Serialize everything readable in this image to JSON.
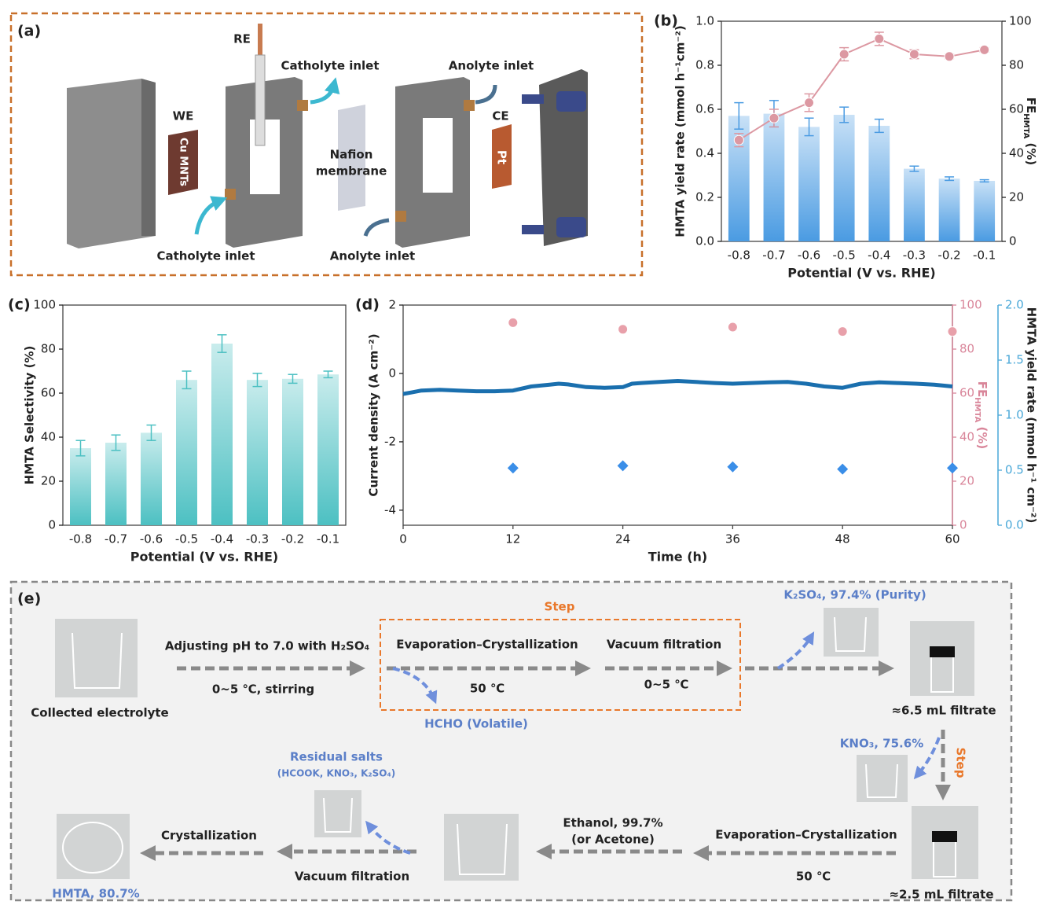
{
  "chart_data": [
    {
      "type": "bar",
      "panel": "(b)",
      "xlabel": "Potential (V vs. RHE)",
      "ylabel": "HMTA yield rate (mmol h⁻¹cm⁻²)",
      "y2label": [
        "FE",
        "HMTA",
        " (%)"
      ],
      "categories": [
        "-0.8",
        "-0.7",
        "-0.6",
        "-0.5",
        "-0.4",
        "-0.3",
        "-0.2",
        "-0.1"
      ],
      "ylim": [
        0,
        1
      ],
      "yticks": [
        {
          "value": 0,
          "label": "0.0"
        },
        0.2,
        0.4,
        0.6,
        0.8,
        {
          "value": 1,
          "label": "1.0"
        }
      ],
      "y2lim": [
        0,
        100
      ],
      "y2ticks": [
        0,
        20,
        40,
        60,
        80,
        100
      ],
      "series": [
        {
          "type": "bar",
          "color": "#4a9be2",
          "values": [
            0.57,
            0.58,
            0.52,
            0.575,
            0.525,
            0.33,
            0.285,
            0.275
          ],
          "errors": [
            0.06,
            0.06,
            0.04,
            0.035,
            0.03,
            0.012,
            0.008,
            0.005
          ]
        },
        {
          "type": "line",
          "axis": "y2",
          "color": "#dc98a2",
          "marker": "circle",
          "values": [
            46,
            56,
            63,
            85,
            92,
            85,
            84,
            87
          ],
          "errors": [
            3,
            4,
            4,
            3,
            3,
            2,
            1,
            1
          ]
        }
      ]
    },
    {
      "type": "bar",
      "panel": "(c)",
      "xlabel": "Potential (V vs. RHE)",
      "ylabel": "HMTA Selectivity (%)",
      "categories": [
        "-0.8",
        "-0.7",
        "-0.6",
        "-0.5",
        "-0.4",
        "-0.3",
        "-0.2",
        "-0.1"
      ],
      "ylim": [
        0,
        100
      ],
      "yticks": [
        0,
        20,
        40,
        60,
        80,
        100
      ],
      "series": [
        {
          "type": "bar",
          "color": "#4cc0c2",
          "values": [
            35,
            37.5,
            42,
            66,
            82.5,
            66,
            66.5,
            68.5
          ],
          "errors": [
            3.5,
            3.5,
            3.5,
            4,
            4,
            3,
            2,
            1.5
          ]
        }
      ]
    },
    {
      "type": "line",
      "panel": "(d)",
      "xlabel": "Time (h)",
      "ylabel": "Current density (A cm⁻²)",
      "y2label": [
        "FE",
        "HMTA",
        " (%)"
      ],
      "y3label": "HMTA yield rate (mmol h⁻¹ cm⁻²)",
      "xlim": [
        0,
        60
      ],
      "xticks": [
        0,
        12,
        24,
        36,
        48,
        60
      ],
      "ylim": [
        -4.44,
        2
      ],
      "yticks": [
        2,
        0,
        -2,
        -4
      ],
      "y2lim": [
        0,
        100
      ],
      "y2ticks": [
        0,
        20,
        40,
        60,
        80,
        100
      ],
      "y2color": "#d9869a",
      "y3lim": [
        0,
        2
      ],
      "y3ticks": [
        {
          "value": 0,
          "label": "0.0"
        },
        0.5,
        {
          "value": 1,
          "label": "1.0"
        },
        1.5,
        {
          "value": 2,
          "label": "2.0"
        }
      ],
      "y3color": "#4aa8d8",
      "series": [
        {
          "type": "line",
          "color": "#1a6fae",
          "x": [
            0,
            1,
            2,
            4,
            6,
            8,
            10,
            12,
            14,
            16,
            17,
            18,
            20,
            22,
            24,
            25,
            26,
            28,
            30,
            32,
            34,
            36,
            38,
            40,
            42,
            44,
            46,
            48,
            49,
            50,
            52,
            54,
            56,
            58,
            60
          ],
          "values": [
            -0.6,
            -0.55,
            -0.5,
            -0.48,
            -0.5,
            -0.52,
            -0.52,
            -0.5,
            -0.38,
            -0.33,
            -0.3,
            -0.32,
            -0.4,
            -0.42,
            -0.4,
            -0.3,
            -0.28,
            -0.25,
            -0.22,
            -0.25,
            -0.28,
            -0.3,
            -0.28,
            -0.26,
            -0.25,
            -0.3,
            -0.38,
            -0.42,
            -0.36,
            -0.3,
            -0.26,
            -0.28,
            -0.3,
            -0.33,
            -0.38
          ]
        },
        {
          "type": "scatter",
          "axis": "y2",
          "color": "#e8a0aa",
          "marker": "circle",
          "x": [
            12,
            24,
            36,
            48,
            60
          ],
          "values": [
            92,
            89,
            90,
            88,
            88
          ]
        },
        {
          "type": "scatter",
          "axis": "y3",
          "color": "#3a8ee8",
          "marker": "diamond",
          "x": [
            12,
            24,
            36,
            48,
            60
          ],
          "values": [
            0.52,
            0.54,
            0.53,
            0.51,
            0.52
          ]
        }
      ]
    }
  ],
  "panel_a": {
    "label": "(a)",
    "re": "RE",
    "catholyte_top": "Catholyte inlet",
    "anolyte_top": "Anolyte inlet",
    "we": "WE",
    "cu": "Cu MNTs",
    "nafion": "Nafion",
    "membrane": "membrane",
    "ce": "CE",
    "pt": "Pt",
    "catholyte_bottom": "Catholyte inlet",
    "anolyte_bottom": "Anolyte inlet"
  },
  "panel_e": {
    "label": "(e)",
    "step_top": "Step",
    "collected": "Collected electrolyte",
    "adjust": "Adjusting pH to 7.0 with H₂SO₄",
    "stirring": "0~5 ℃, stirring",
    "evap1": "Evaporation–Crystallization",
    "temp1": "50 ℃",
    "vac1": "Vacuum filtration",
    "cool": "0~5 ℃",
    "hcho": "HCHO  (Volatile)",
    "k2so4": "K₂SO₄, 97.4% (Purity)",
    "filtrate1": "≈6.5 mL filtrate",
    "kno3": "KNO₃, 75.6%",
    "step_side": "Step",
    "evap2": "Evaporation–Crystallization",
    "temp2": "50 ℃",
    "filtrate2": "≈2.5 mL filtrate",
    "ethanol": "Ethanol, 99.7%",
    "acetone": "(or Acetone)",
    "residual": "Residual salts",
    "residual_list": "(HCOOK, KNO₃, K₂SO₄)",
    "vac2": "Vacuum filtration",
    "cryst": "Crystallization",
    "hmta": "HMTA,  80.7%"
  }
}
